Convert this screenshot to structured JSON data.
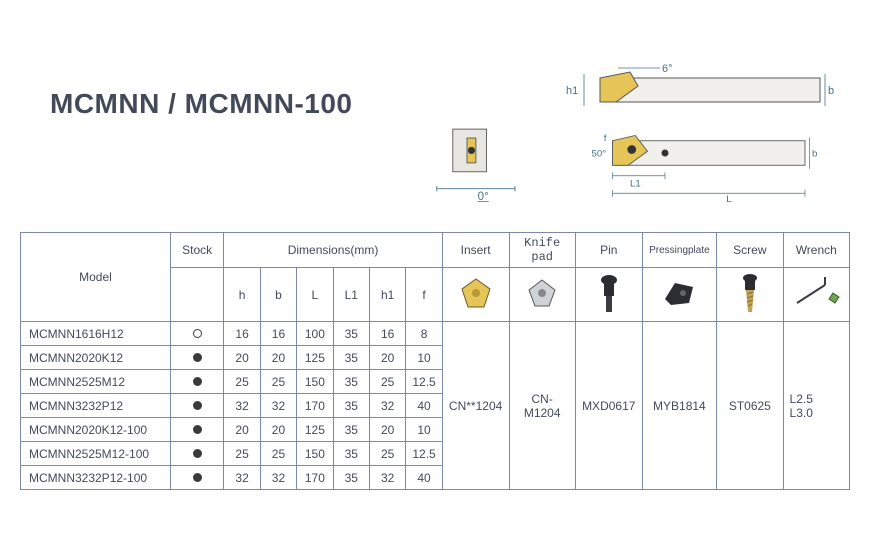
{
  "title": "MCMNN / MCMNN-100",
  "diagram_labels": {
    "h1": "h1",
    "b_top": "b",
    "angle6": "6°",
    "angle0": "0°",
    "angle50": "50°",
    "f": "f",
    "L1": "L1",
    "L": "L",
    "b_side": "b"
  },
  "headers": {
    "model": "Model",
    "stock": "Stock",
    "dimensions": "Dimensions(mm)",
    "dim_sub": [
      "h",
      "b",
      "L",
      "L1",
      "h1",
      "f"
    ],
    "insert": "Insert",
    "knife": "Knife pad",
    "pin": "Pin",
    "plate": "Pressingplate",
    "screw": "Screw",
    "wrench": "Wrench"
  },
  "rows": [
    {
      "model": "MCMNN1616H12",
      "stock": "open",
      "h": "16",
      "b": "16",
      "L": "100",
      "L1": "35",
      "h1": "16",
      "f": "8"
    },
    {
      "model": "MCMNN2020K12",
      "stock": "filled",
      "h": "20",
      "b": "20",
      "L": "125",
      "L1": "35",
      "h1": "20",
      "f": "10"
    },
    {
      "model": "MCMNN2525M12",
      "stock": "filled",
      "h": "25",
      "b": "25",
      "L": "150",
      "L1": "35",
      "h1": "25",
      "f": "12.5"
    },
    {
      "model": "MCMNN3232P12",
      "stock": "filled",
      "h": "32",
      "b": "32",
      "L": "170",
      "L1": "35",
      "h1": "32",
      "f": "40"
    },
    {
      "model": "MCMNN2020K12-100",
      "stock": "filled",
      "h": "20",
      "b": "20",
      "L": "125",
      "L1": "35",
      "h1": "20",
      "f": "10"
    },
    {
      "model": "MCMNN2525M12-100",
      "stock": "filled",
      "h": "25",
      "b": "25",
      "L": "150",
      "L1": "35",
      "h1": "25",
      "f": "12.5"
    },
    {
      "model": "MCMNN3232P12-100",
      "stock": "filled",
      "h": "32",
      "b": "32",
      "L": "170",
      "L1": "35",
      "h1": "32",
      "f": "40"
    }
  ],
  "accessories": {
    "insert": "CN**1204",
    "knife": "CN-M1204",
    "pin": "MXD0617",
    "plate": "MYB1814",
    "screw": "ST0625",
    "wrench_l1": "L2.5",
    "wrench_l2": "L3.0"
  },
  "colors": {
    "border": "#7a8aa5",
    "text": "#424a5a",
    "dim": "#447188",
    "insert_yellow": "#e5c458",
    "tool_grey": "#bfc4cb",
    "tool_dark": "#2b2d33",
    "tool_gold": "#c4a254"
  }
}
